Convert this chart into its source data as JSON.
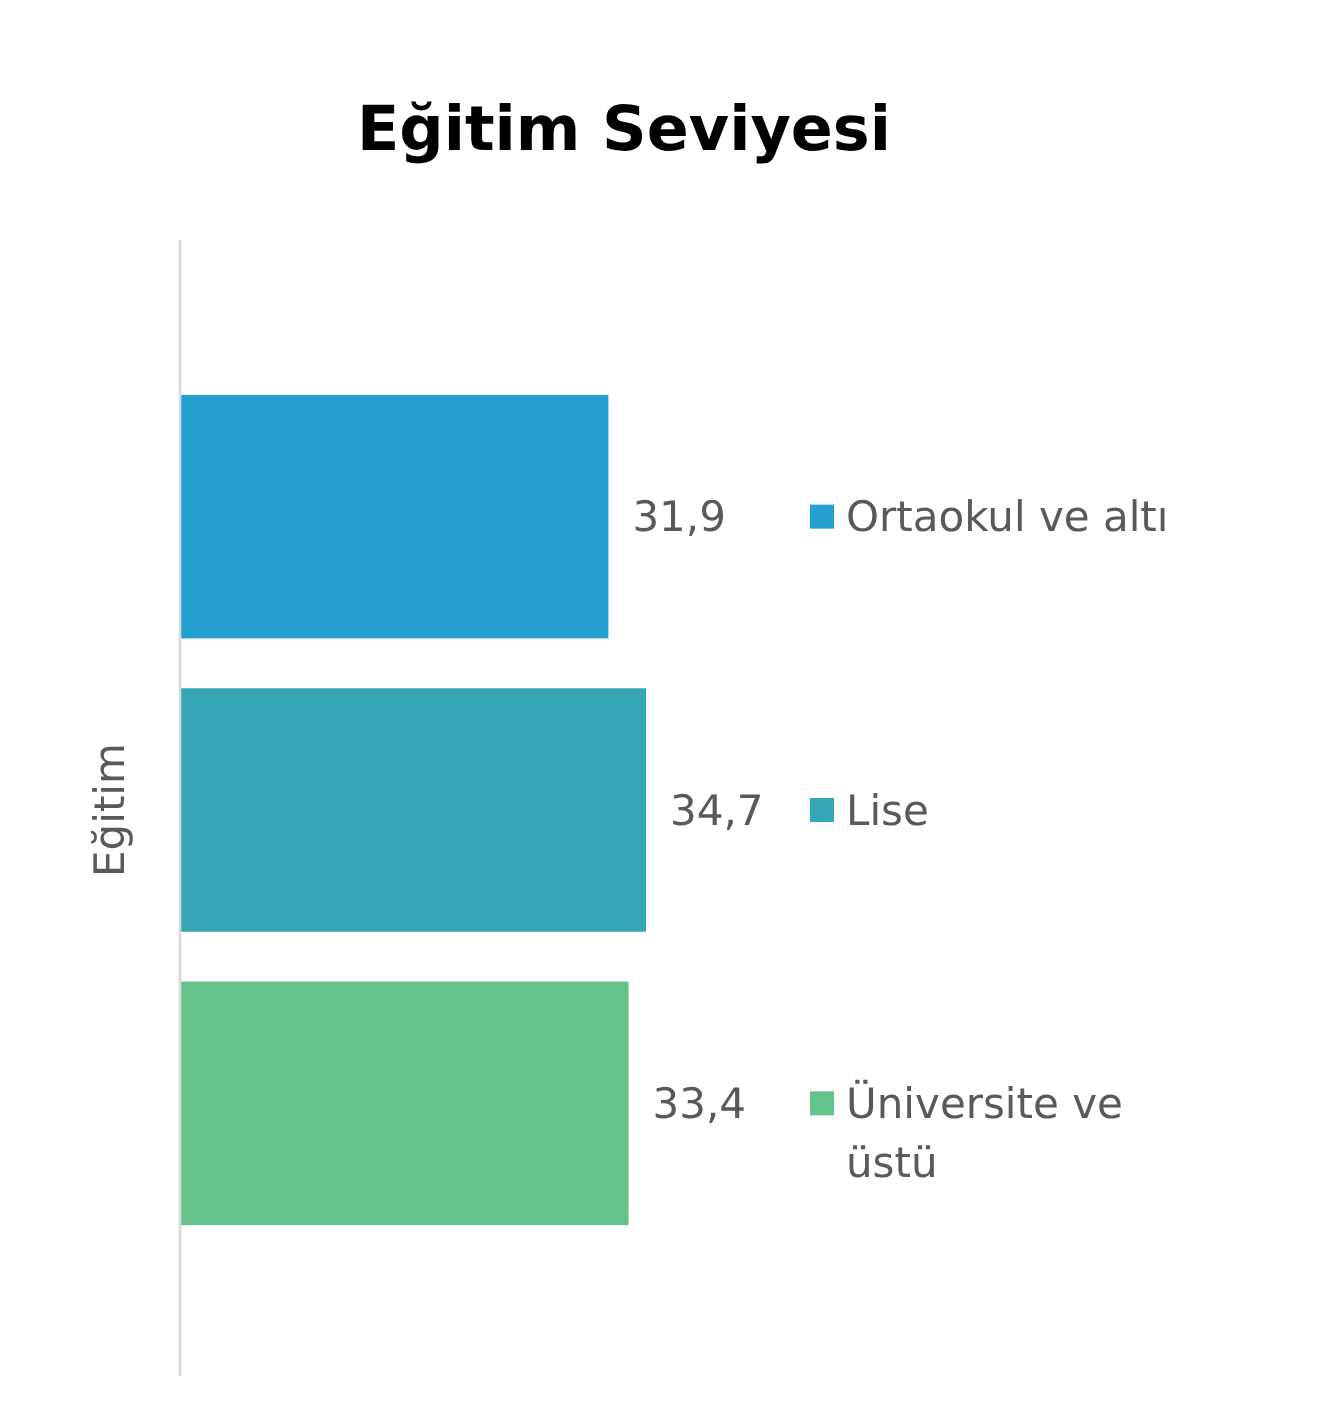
{
  "chart_data": {
    "type": "bar",
    "orientation": "horizontal",
    "title": "Eğitim Seviyesi",
    "ylabel": "Eğitim",
    "categories": [
      null
    ],
    "legend": "right",
    "series": [
      {
        "name": "Ortaokul ve altı",
        "color": "#239fd2",
        "values": [
          31.9
        ],
        "value_labels": [
          "31,9"
        ]
      },
      {
        "name": "Lise",
        "color": "#36a7b5",
        "values": [
          34.7
        ],
        "value_labels": [
          "34,7"
        ]
      },
      {
        "name": "Üniversite ve üstü",
        "color": "#62c28a",
        "values": [
          33.4
        ],
        "value_labels": [
          "33,4"
        ]
      }
    ]
  }
}
